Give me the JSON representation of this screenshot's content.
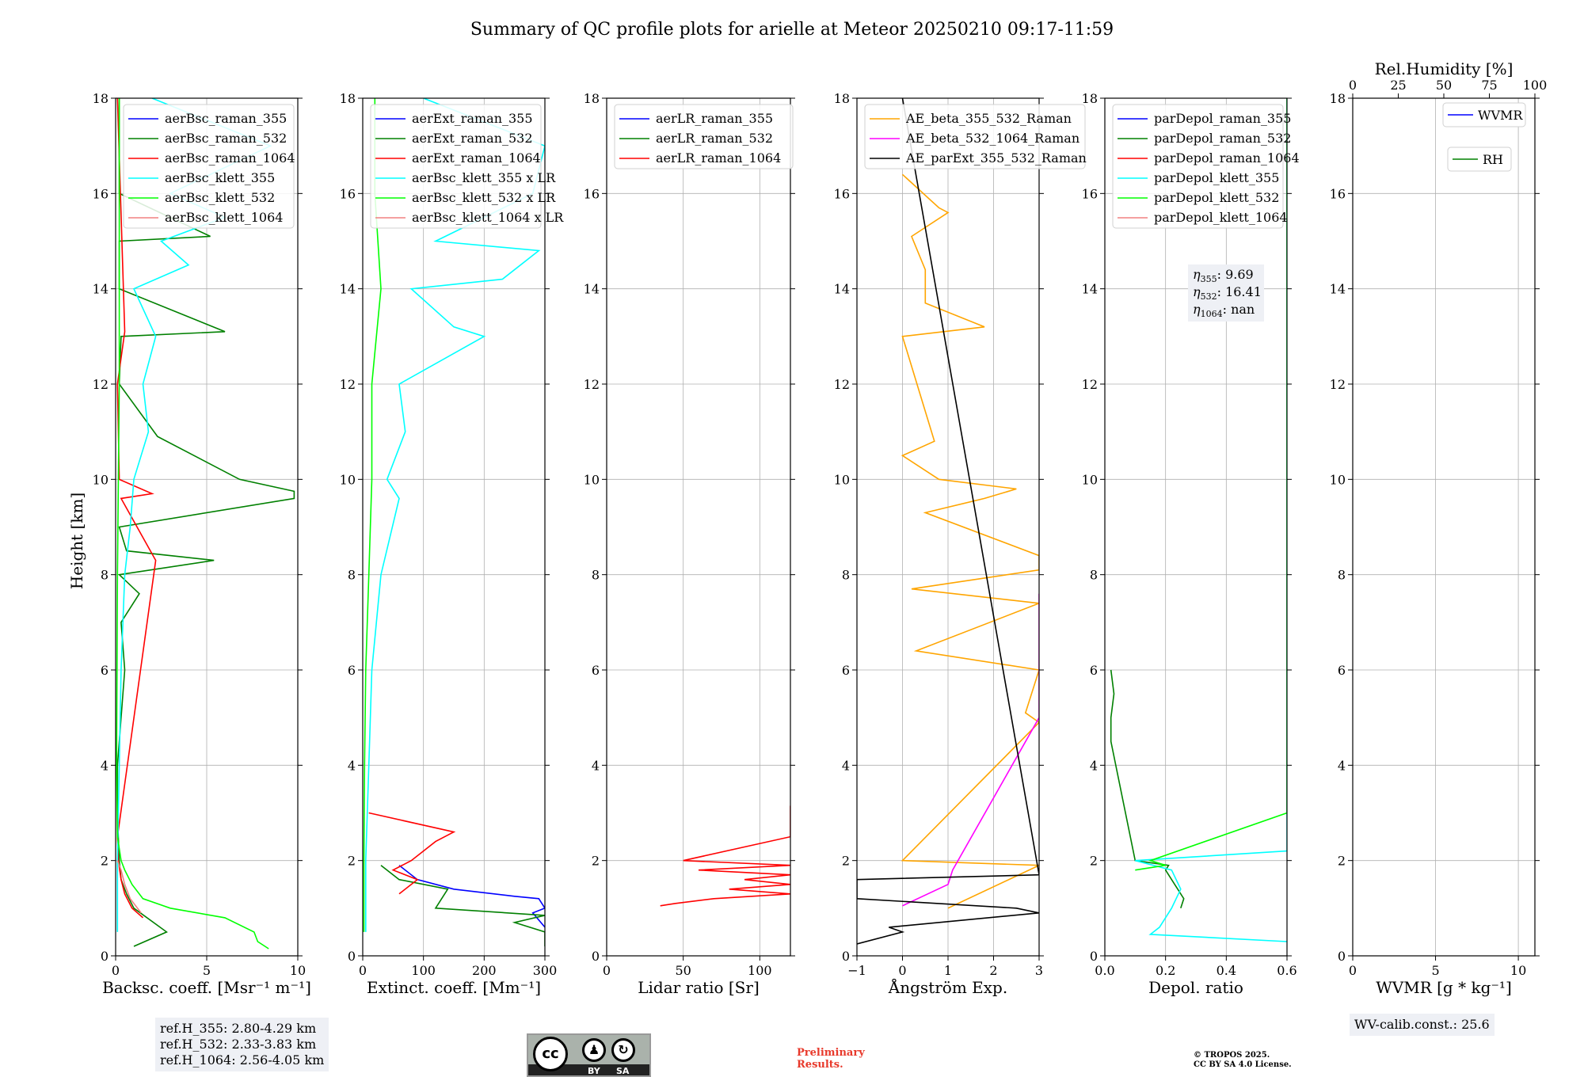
{
  "title": "Summary of QC profile plots for arielle at Meteor 20250210 09:17-11:59",
  "ylabel": "Height [km]",
  "panels": [
    {
      "xlabel": "Backsc. coeff. [Msr⁻¹ m⁻¹]",
      "xlim": [
        0,
        10
      ],
      "xticks": [
        {
          "v": 0,
          "t": "0"
        },
        {
          "v": 5,
          "t": "5"
        },
        {
          "v": 10,
          "t": "10"
        }
      ],
      "legend": [
        {
          "label": "aerBsc_raman_355",
          "color": "#0000ff"
        },
        {
          "label": "aerBsc_raman_532",
          "color": "#008000"
        },
        {
          "label": "aerBsc_raman_1064",
          "color": "#ff0000"
        },
        {
          "label": "aerBsc_klett_355",
          "color": "#00ffff"
        },
        {
          "label": "aerBsc_klett_532",
          "color": "#00ff00"
        },
        {
          "label": "aerBsc_klett_1064",
          "color": "#f08080"
        }
      ]
    },
    {
      "xlabel": "Extinct. coeff. [Mm⁻¹]",
      "xlim": [
        0,
        300
      ],
      "xticks": [
        {
          "v": 0,
          "t": "0"
        },
        {
          "v": 100,
          "t": "100"
        },
        {
          "v": 200,
          "t": "200"
        },
        {
          "v": 300,
          "t": "300"
        }
      ],
      "legend": [
        {
          "label": "aerExt_raman_355",
          "color": "#0000ff"
        },
        {
          "label": "aerExt_raman_532",
          "color": "#008000"
        },
        {
          "label": "aerExt_raman_1064",
          "color": "#ff0000"
        },
        {
          "label": "aerBsc_klett_355 x LR",
          "color": "#00ffff"
        },
        {
          "label": "aerBsc_klett_532 x LR",
          "color": "#00ff00"
        },
        {
          "label": "aerBsc_klett_1064 x LR",
          "color": "#f08080"
        }
      ]
    },
    {
      "xlabel": "Lidar ratio [Sr]",
      "xlim": [
        0,
        120
      ],
      "xticks": [
        {
          "v": 0,
          "t": "0"
        },
        {
          "v": 50,
          "t": "50"
        },
        {
          "v": 100,
          "t": "100"
        }
      ],
      "legend": [
        {
          "label": "aerLR_raman_355",
          "color": "#0000ff"
        },
        {
          "label": "aerLR_raman_532",
          "color": "#008000"
        },
        {
          "label": "aerLR_raman_1064",
          "color": "#ff0000"
        }
      ]
    },
    {
      "xlabel": "Ångström Exp.",
      "xlim": [
        -1,
        3
      ],
      "xticks": [
        {
          "v": -1,
          "t": "−1"
        },
        {
          "v": 0,
          "t": "0"
        },
        {
          "v": 1,
          "t": "1"
        },
        {
          "v": 2,
          "t": "2"
        },
        {
          "v": 3,
          "t": "3"
        }
      ],
      "legend": [
        {
          "label": "AE_beta_355_532_Raman",
          "color": "#ffa500"
        },
        {
          "label": "AE_beta_532_1064_Raman",
          "color": "#ff00ff"
        },
        {
          "label": "AE_parExt_355_532_Raman",
          "color": "#000000"
        }
      ]
    },
    {
      "xlabel": "Depol. ratio",
      "xlim": [
        0,
        0.6
      ],
      "xticks": [
        {
          "v": 0,
          "t": "0.0"
        },
        {
          "v": 0.2,
          "t": "0.2"
        },
        {
          "v": 0.4,
          "t": "0.4"
        },
        {
          "v": 0.6,
          "t": "0.6"
        }
      ],
      "legend": [
        {
          "label": "parDepol_raman_355",
          "color": "#0000ff"
        },
        {
          "label": "parDepol_raman_532",
          "color": "#008000"
        },
        {
          "label": "parDepol_raman_1064",
          "color": "#ff0000"
        },
        {
          "label": "parDepol_klett_355",
          "color": "#00ffff"
        },
        {
          "label": "parDepol_klett_532",
          "color": "#00ff00"
        },
        {
          "label": "parDepol_klett_1064",
          "color": "#f08080"
        }
      ],
      "eta": {
        "sub355": "355",
        "v355": ": 9.69",
        "sub532": "532",
        "v532": ": 16.41",
        "sub1064": "1064",
        "v1064": ": nan"
      }
    },
    {
      "xlabel": "WVMR [g * kg⁻¹]",
      "xlim": [
        0,
        11
      ],
      "xticks": [
        {
          "v": 0,
          "t": "0"
        },
        {
          "v": 5,
          "t": "5"
        },
        {
          "v": 10,
          "t": "10"
        }
      ],
      "top_label": "Rel.Humidity [%]",
      "top_ticks": [
        "0",
        "25",
        "50",
        "75",
        "100"
      ],
      "legend_wvmr": {
        "label": "WVMR",
        "color": "#0000ff"
      },
      "legend_rh": {
        "label": "RH",
        "color": "#008000"
      }
    }
  ],
  "yticks": [
    "0",
    "2",
    "4",
    "6",
    "8",
    "10",
    "12",
    "14",
    "16",
    "18"
  ],
  "chart_data": {
    "type": "line",
    "title": "Summary of QC profile plots for arielle at Meteor 20250210 09:17-11:59",
    "ylabel": "Height [km]",
    "ylim": [
      0,
      18
    ],
    "grid": true,
    "subplots": [
      {
        "xlabel": "Backsc. coeff. [Msr-1 m-1]",
        "xlim": [
          0,
          10
        ],
        "series": [
          {
            "name": "aerBsc_raman_532",
            "color": "#008000",
            "h": [
              0.2,
              0.5,
              1.0,
              1.3,
              1.6,
              2.0,
              2.5,
              3,
              4,
              5,
              6,
              7,
              7.6,
              8,
              8.3,
              8.5,
              9,
              9.6,
              9.75,
              10,
              10.9,
              12,
              13,
              13.1,
              14,
              15,
              15.1,
              16,
              18
            ],
            "v": [
              1.0,
              2.8,
              1.0,
              0.6,
              0.3,
              0.2,
              0.15,
              0.1,
              0.1,
              0.3,
              0.5,
              0.3,
              1.3,
              0.2,
              5.4,
              0.6,
              0.2,
              9.8,
              9.8,
              6.8,
              2.3,
              0.2,
              0.3,
              6.0,
              0.2,
              0.2,
              5.2,
              0.2,
              0.2
            ]
          },
          {
            "name": "aerBsc_raman_1064",
            "color": "#ff0000",
            "h": [
              0.8,
              1.0,
              1.3,
              1.6,
              2.0,
              2.5,
              8.3,
              9.6,
              9.7,
              10,
              12,
              13.1,
              18
            ],
            "v": [
              1.5,
              0.9,
              0.5,
              0.3,
              0.15,
              0.1,
              2.2,
              0.3,
              2.0,
              0.2,
              0.1,
              0.5,
              0.1
            ]
          },
          {
            "name": "aerBsc_klett_355",
            "color": "#00ffff",
            "h": [
              0.5,
              2,
              4,
              6,
              8,
              9,
              10,
              11,
              12,
              13,
              14,
              14.5,
              15,
              15.5,
              16,
              17,
              18
            ],
            "v": [
              0.1,
              0.1,
              0.2,
              0.3,
              0.5,
              0.8,
              1.0,
              1.8,
              1.5,
              2.2,
              1.0,
              4.0,
              2.5,
              6.0,
              3.0,
              8.5,
              2.0
            ]
          },
          {
            "name": "aerBsc_klett_532",
            "color": "#00ff00",
            "h": [
              0.15,
              0.3,
              0.5,
              0.8,
              1.0,
              1.2,
              1.5,
              1.8,
              2.0,
              2.5,
              4,
              8,
              12,
              16,
              18
            ],
            "v": [
              8.4,
              7.8,
              7.6,
              6.0,
              3.0,
              1.5,
              0.9,
              0.5,
              0.3,
              0.1,
              0.05,
              0.1,
              0.2,
              0.2,
              0.2
            ]
          },
          {
            "name": "aerBsc_klett_1064",
            "color": "#f08080",
            "h": [
              0.9,
              1.2,
              1.5,
              1.8,
              2.0
            ],
            "v": [
              1.4,
              0.8,
              0.5,
              0.3,
              0.1
            ]
          }
        ]
      },
      {
        "xlabel": "Extinct. coeff. [Mm-1]",
        "xlim": [
          0,
          300
        ],
        "series": [
          {
            "name": "aerExt_raman_355",
            "color": "#0000ff",
            "h": [
              0.6,
              0.9,
              1.0,
              1.2,
              1.25,
              1.4,
              1.6,
              1.9
            ],
            "v": [
              300,
              280,
              300,
              290,
              250,
              150,
              90,
              60
            ]
          },
          {
            "name": "aerExt_raman_532",
            "color": "#008000",
            "h": [
              0.2,
              0.5,
              0.7,
              0.85,
              1.0,
              1.4,
              1.6,
              1.9
            ],
            "v": [
              300,
              300,
              250,
              300,
              120,
              140,
              60,
              30
            ]
          },
          {
            "name": "aerExt_raman_1064",
            "color": "#ff0000",
            "h": [
              1.3,
              1.6,
              1.8,
              2.0,
              2.2,
              2.4,
              2.6,
              3.0
            ],
            "v": [
              60,
              90,
              50,
              80,
              100,
              120,
              150,
              10
            ]
          },
          {
            "name": "aerBsc_klett_355 x LR",
            "color": "#00ffff",
            "h": [
              0.5,
              2,
              4,
              6,
              8,
              9.6,
              10,
              11,
              12,
              13,
              13.2,
              14,
              14.2,
              14.8,
              15,
              16,
              17,
              18
            ],
            "v": [
              5,
              5,
              10,
              15,
              30,
              60,
              40,
              70,
              60,
              200,
              150,
              80,
              230,
              290,
              120,
              280,
              300,
              100
            ]
          },
          {
            "name": "aerBsc_klett_532 x LR",
            "color": "#00ff00",
            "h": [
              0.5,
              2,
              4,
              6,
              8,
              10,
              12,
              14,
              16,
              18
            ],
            "v": [
              2,
              2,
              3,
              5,
              10,
              15,
              15,
              30,
              20,
              20
            ]
          }
        ]
      },
      {
        "xlabel": "Lidar ratio [Sr]",
        "xlim": [
          0,
          120
        ],
        "series": [
          {
            "name": "aerLR_raman_1064",
            "color": "#ff0000",
            "h": [
              1.05,
              1.1,
              1.2,
              1.3,
              1.4,
              1.5,
              1.6,
              1.7,
              1.8,
              1.9,
              2.0,
              2.5,
              2.6,
              3.15
            ],
            "v": [
              35,
              45,
              70,
              120,
              80,
              120,
              90,
              120,
              60,
              120,
              50,
              120,
              120,
              120
            ]
          }
        ]
      },
      {
        "xlabel": "Angstrom Exp.",
        "xlim": [
          -1,
          3
        ],
        "series": [
          {
            "name": "AE_beta_355_532_Raman",
            "color": "#ffa500",
            "h": [
              1.0,
              1.9,
              2.0,
              4.9,
              5.1,
              6.0,
              6.4,
              7.4,
              7.7,
              8.1,
              8.4,
              9.3,
              9.6,
              9.8,
              10.0,
              10.5,
              10.8,
              13.0,
              13.2,
              13.7,
              14.4,
              15.1,
              15.6,
              15.7,
              16.4
            ],
            "v": [
              1.0,
              3.0,
              0.0,
              3.0,
              2.7,
              3.0,
              0.3,
              3.0,
              0.2,
              3.0,
              3.0,
              0.5,
              1.8,
              2.5,
              0.8,
              0.0,
              0.7,
              0.0,
              1.8,
              0.5,
              0.5,
              0.2,
              1.0,
              0.8,
              0.0
            ]
          },
          {
            "name": "AE_beta_532_1064_Raman",
            "color": "#ff00ff",
            "h": [
              1.05,
              1.5,
              1.8,
              5.0,
              5.3,
              5.7,
              6.3,
              7.6
            ],
            "v": [
              0.0,
              1.0,
              1.1,
              3.0,
              3.0,
              3.0,
              3.0,
              3.0
            ]
          },
          {
            "name": "AE_parExt_355_532_Raman",
            "color": "#000000",
            "h": [
              0.25,
              0.5,
              0.6,
              0.9,
              1.0,
              1.2,
              1.6,
              1.7,
              18
            ],
            "v": [
              -1.0,
              0.0,
              -0.3,
              3.0,
              2.5,
              -1.0,
              -1.0,
              3.0,
              0.0
            ]
          }
        ]
      },
      {
        "xlabel": "Depol. ratio",
        "xlim": [
          0,
          0.6
        ],
        "series": [
          {
            "name": "parDepol_raman_532",
            "color": "#008000",
            "h": [
              1.0,
              1.2,
              1.5,
              1.8,
              1.9,
              2.0,
              4.5,
              5.0,
              5.5,
              6.0
            ],
            "v": [
              0.25,
              0.26,
              0.23,
              0.2,
              0.21,
              0.1,
              0.02,
              0.02,
              0.03,
              0.02
            ]
          },
          {
            "name": "parDepol_klett_355",
            "color": "#00ffff",
            "h": [
              0.3,
              0.45,
              0.6,
              1.0,
              1.4,
              1.8,
              2.0,
              2.2,
              6,
              10,
              14,
              15,
              18
            ],
            "v": [
              0.6,
              0.15,
              0.18,
              0.22,
              0.25,
              0.22,
              0.1,
              0.6,
              0.6,
              0.6,
              0.6,
              0.6,
              0.6
            ]
          },
          {
            "name": "parDepol_klett_532",
            "color": "#00ff00",
            "h": [
              1.8,
              1.9,
              2.0,
              3,
              4,
              5,
              6,
              8,
              10,
              12,
              14,
              16,
              18
            ],
            "v": [
              0.1,
              0.2,
              0.15,
              0.6,
              0.6,
              0.6,
              0.6,
              0.6,
              0.6,
              0.6,
              0.6,
              0.6,
              0.6
            ]
          }
        ],
        "annotations": [
          "eta_355: 9.69",
          "eta_532: 16.41",
          "eta_1064: nan"
        ]
      },
      {
        "xlabel": "WVMR [g*kg-1]",
        "xlim": [
          0,
          11
        ],
        "top_xlabel": "Rel.Humidity [%]",
        "top_xlim": [
          0,
          100
        ],
        "series": [
          {
            "name": "WVMR",
            "color": "#0000ff",
            "h": [],
            "v": []
          },
          {
            "name": "RH",
            "color": "#008000",
            "h": [],
            "v": []
          }
        ]
      }
    ]
  },
  "refbox": [
    "ref.H_355: 2.80-4.29 km",
    "ref.H_532: 2.33-3.83 km",
    "ref.H_1064: 2.56-4.05 km"
  ],
  "wvcalib": "WV-calib.const.: 25.6",
  "preliminary": [
    "Preliminary",
    "Results."
  ],
  "copyright": [
    "© TROPOS 2025.",
    "CC BY SA 4.0 License."
  ],
  "cc_badge": {
    "cc": "cc",
    "by": "BY",
    "sa": "SA"
  }
}
